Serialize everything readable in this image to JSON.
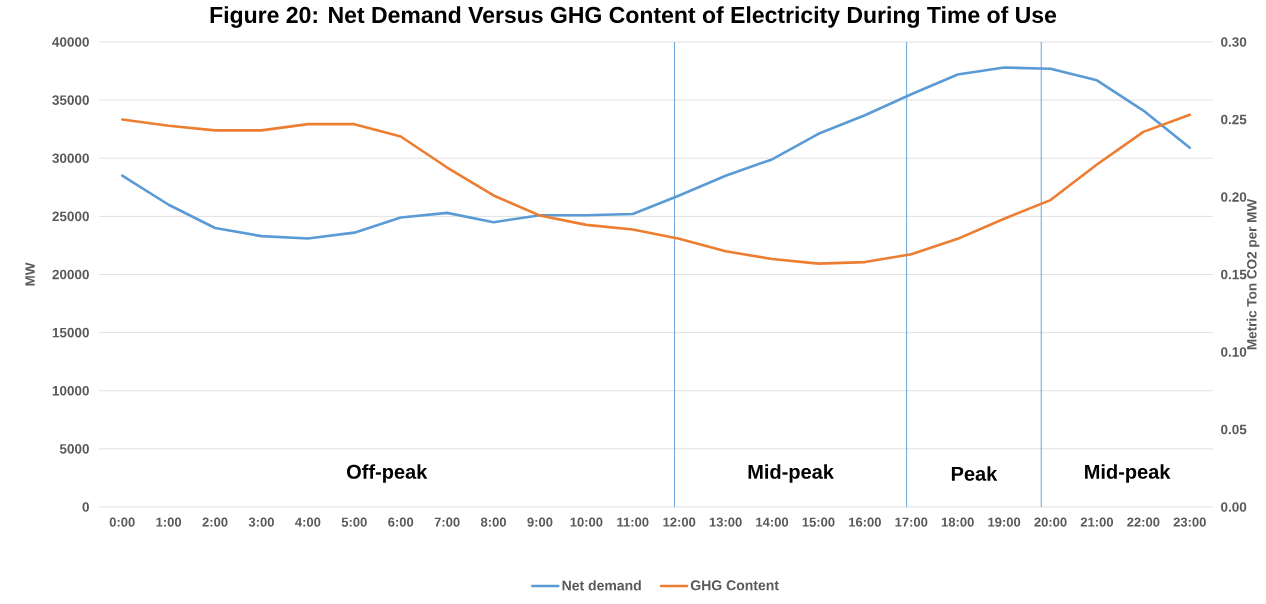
{
  "chart_data": {
    "type": "line",
    "title": "Figure 20: Net Demand Versus GHG Content of Electricity During Time of Use",
    "ylabel": "MW",
    "y2label": "Metric Ton CO2 per MW",
    "x": [
      0,
      1,
      2,
      3,
      4,
      5,
      6,
      7,
      8,
      9,
      10,
      11,
      12,
      13,
      14,
      15,
      16,
      17,
      18,
      19,
      20,
      21,
      22,
      23
    ],
    "xlim": [
      -0.5,
      23.5
    ],
    "xticks": [
      {
        "value": 0,
        "label": "0:00"
      },
      {
        "value": 1,
        "label": "1:00"
      },
      {
        "value": 2,
        "label": "2:00"
      },
      {
        "value": 3,
        "label": "3:00"
      },
      {
        "value": 4,
        "label": "4:00"
      },
      {
        "value": 5,
        "label": "5:00"
      },
      {
        "value": 6,
        "label": "6:00"
      },
      {
        "value": 7,
        "label": "7:00"
      },
      {
        "value": 8,
        "label": "8:00"
      },
      {
        "value": 9,
        "label": "9:00"
      },
      {
        "value": 10,
        "label": "10:00"
      },
      {
        "value": 11,
        "label": "11:00"
      },
      {
        "value": 12,
        "label": "12:00"
      },
      {
        "value": 13,
        "label": "13:00"
      },
      {
        "value": 14,
        "label": "14:00"
      },
      {
        "value": 15,
        "label": "15:00"
      },
      {
        "value": 16,
        "label": "16:00"
      },
      {
        "value": 17,
        "label": "17:00"
      },
      {
        "value": 18,
        "label": "18:00"
      },
      {
        "value": 19,
        "label": "19:00"
      },
      {
        "value": 20,
        "label": "20:00"
      },
      {
        "value": 21,
        "label": "21:00"
      },
      {
        "value": 22,
        "label": "22:00"
      },
      {
        "value": 23,
        "label": "23:00"
      }
    ],
    "ylim": [
      0,
      40000
    ],
    "yticks": [
      0,
      5000,
      10000,
      15000,
      20000,
      25000,
      30000,
      35000,
      40000
    ],
    "y2lim": [
      0,
      0.3
    ],
    "y2ticks": [
      {
        "value": 0,
        "label": "0.00"
      },
      {
        "value": 0.05,
        "label": "0.05"
      },
      {
        "value": 0.1,
        "label": "0.10"
      },
      {
        "value": 0.15,
        "label": "0.15"
      },
      {
        "value": 0.2,
        "label": "0.20"
      },
      {
        "value": 0.25,
        "label": "0.25"
      },
      {
        "value": 0.3,
        "label": "0.30"
      }
    ],
    "series": [
      {
        "name": "Net demand",
        "color": "#5b9bd5",
        "values": [
          28500,
          26000,
          24000,
          23300,
          23100,
          23600,
          24900,
          25300,
          24500,
          25100,
          25100,
          25200,
          26800,
          28500,
          29900,
          32100,
          33700,
          35500,
          37200,
          37800,
          37700,
          36700,
          34100,
          30900
        ]
      },
      {
        "name": "GHG Content",
        "color": "#ed7d31",
        "axis": "y2",
        "values": [
          0.25,
          0.246,
          0.243,
          0.243,
          0.247,
          0.247,
          0.239,
          0.219,
          0.201,
          0.188,
          0.182,
          0.179,
          0.173,
          0.165,
          0.16,
          0.157,
          0.158,
          0.163,
          0.173,
          0.186,
          0.198,
          0.221,
          0.242,
          0.253
        ]
      }
    ],
    "ref_lines": [
      {
        "axis": "x",
        "value": 11.9,
        "color": "#5b9bd5"
      },
      {
        "axis": "x",
        "value": 16.9,
        "color": "#5b9bd5"
      },
      {
        "axis": "x",
        "value": 19.8,
        "color": "#5b9bd5"
      }
    ],
    "annotations": [
      "Off-peak",
      "Mid-peak",
      "Peak",
      "Mid-peak"
    ],
    "grid": "y",
    "legend": "bottom"
  }
}
